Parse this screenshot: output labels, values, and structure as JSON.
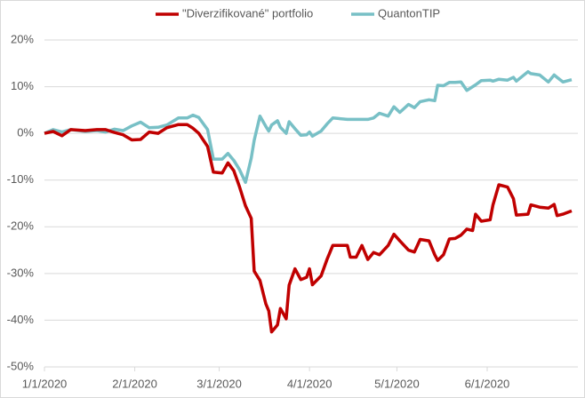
{
  "chart_data": {
    "type": "line",
    "x": [
      "1/1/2020",
      "1/4/2020",
      "1/7/2020",
      "1/10/2020",
      "1/15/2020",
      "1/19/2020",
      "1/22/2020",
      "1/25/2020",
      "1/28/2020",
      "1/31/2020",
      "2/3/2020",
      "2/6/2020",
      "2/9/2020",
      "2/12/2020",
      "2/16/2020",
      "2/19/2020",
      "2/21/2020",
      "2/23/2020",
      "2/26/2020",
      "2/28/2020",
      "3/2/2020",
      "3/4/2020",
      "3/6/2020",
      "3/8/2020",
      "3/10/2020",
      "3/12/2020",
      "3/13/2020",
      "3/15/2020",
      "3/17/2020",
      "3/18/2020",
      "3/19/2020",
      "3/21/2020",
      "3/22/2020",
      "3/24/2020",
      "3/25/2020",
      "3/27/2020",
      "3/29/2020",
      "3/31/2020",
      "4/1/2020",
      "4/2/2020",
      "4/5/2020",
      "4/7/2020",
      "4/9/2020",
      "4/14/2020",
      "4/15/2020",
      "4/17/2020",
      "4/19/2020",
      "4/21/2020",
      "4/23/2020",
      "4/25/2020",
      "4/28/2020",
      "4/30/2020",
      "5/2/2020",
      "5/5/2020",
      "5/7/2020",
      "5/9/2020",
      "5/12/2020",
      "5/14/2020",
      "5/15/2020",
      "5/17/2020",
      "5/19/2020",
      "5/21/2020",
      "5/23/2020",
      "5/25/2020",
      "5/27/2020",
      "5/28/2020",
      "5/30/2020",
      "6/2/2020",
      "6/3/2020",
      "6/5/2020",
      "6/8/2020",
      "6/10/2020",
      "6/11/2020",
      "6/15/2020",
      "6/16/2020",
      "6/19/2020",
      "6/22/2020",
      "6/24/2020",
      "6/25/2020",
      "6/27/2020",
      "6/30/2020"
    ],
    "series": [
      {
        "name": "\"Diverzifikované\" portfolio",
        "color": "#c00000",
        "values": [
          0,
          0.4,
          -0.5,
          0.8,
          0.6,
          0.8,
          0.8,
          0.2,
          -0.3,
          -1.4,
          -1.3,
          0.3,
          0,
          1.2,
          1.9,
          1.9,
          1.1,
          0,
          -2.8,
          -8.3,
          -8.5,
          -6.3,
          -8,
          -11.5,
          -15.5,
          -18.2,
          -29.5,
          -31.5,
          -36.5,
          -38,
          -42.5,
          -41,
          -37.5,
          -39.7,
          -32.5,
          -29,
          -31.3,
          -30.8,
          -29,
          -32.4,
          -30.5,
          -27,
          -24,
          -24,
          -26.5,
          -26.5,
          -24,
          -27,
          -25.5,
          -26,
          -24,
          -21.6,
          -23,
          -25,
          -25.4,
          -22.7,
          -23,
          -26,
          -27.2,
          -26,
          -22.6,
          -22.5,
          -21.8,
          -20.5,
          -20.8,
          -17.3,
          -18.8,
          -18.5,
          -15.3,
          -11,
          -11.5,
          -14,
          -17.5,
          -17.3,
          -15.3,
          -15.8,
          -16,
          -15.2,
          -17.6,
          -17.3,
          -16.6
        ]
      },
      {
        "name": "QuantonTIP",
        "color": "#78c0c6",
        "values": [
          0,
          0.8,
          0.3,
          0.8,
          0.4,
          0.6,
          0.3,
          0.9,
          0.6,
          1.6,
          2.4,
          1.2,
          1.3,
          1.8,
          3.3,
          3.3,
          3.9,
          3.4,
          0.8,
          -5.5,
          -5.5,
          -4.3,
          -5.8,
          -7.8,
          -10.5,
          -5.3,
          -1.5,
          3.7,
          1.5,
          0.5,
          1.8,
          2.7,
          1.3,
          0,
          2.5,
          1,
          -0.4,
          -0.3,
          0.3,
          -0.6,
          0.5,
          2,
          3.3,
          3,
          3,
          3,
          3,
          3,
          3.3,
          4.3,
          3.7,
          5.7,
          4.5,
          6.2,
          5.5,
          6.8,
          7.2,
          7,
          10.3,
          10.2,
          10.9,
          10.9,
          11,
          9.2,
          10,
          10.4,
          11.3,
          11.4,
          11.2,
          11.6,
          11.4,
          12,
          11.2,
          13.2,
          12.8,
          12.5,
          11,
          12.5,
          12,
          11,
          11.5
        ]
      }
    ],
    "xlim": [
      "1/1/2020",
      "6/30/2020"
    ],
    "xticks": [
      "1/1/2020",
      "2/1/2020",
      "3/1/2020",
      "4/1/2020",
      "5/1/2020",
      "6/1/2020"
    ],
    "ylim": [
      -50,
      20
    ],
    "yticks": [
      {
        "value": -50,
        "label": "-50%"
      },
      {
        "value": -40,
        "label": "-40%"
      },
      {
        "value": -30,
        "label": "-30%"
      },
      {
        "value": -20,
        "label": "-20%"
      },
      {
        "value": -10,
        "label": "-10%"
      },
      {
        "value": 0,
        "label": "0%"
      },
      {
        "value": 10,
        "label": "10%"
      },
      {
        "value": 20,
        "label": "20%"
      }
    ],
    "grid": true,
    "legend": "top"
  }
}
